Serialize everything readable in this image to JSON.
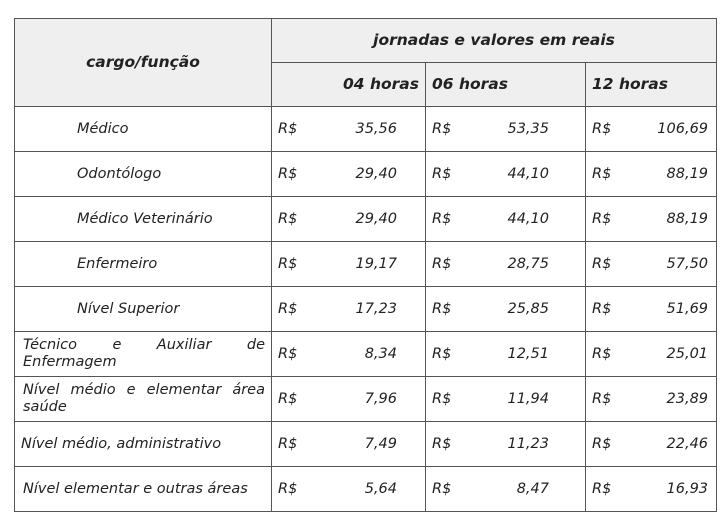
{
  "table": {
    "header_role": "cargo/função",
    "header_group": "jornadas e valores em reais",
    "columns": [
      "04 horas",
      "06 horas",
      "12 horas"
    ],
    "currency": "R$",
    "rows": [
      {
        "role": "Médico",
        "values": [
          "35,56",
          "53,35",
          "106,69"
        ]
      },
      {
        "role": "Odontólogo",
        "values": [
          "29,40",
          "44,10",
          "88,19"
        ]
      },
      {
        "role": "Médico Veterinário",
        "values": [
          "29,40",
          "44,10",
          "88,19"
        ]
      },
      {
        "role": "Enfermeiro",
        "values": [
          "19,17",
          "28,75",
          "57,50"
        ]
      },
      {
        "role": "Nível Superior",
        "values": [
          "17,23",
          "25,85",
          "51,69"
        ]
      },
      {
        "role": "Técnico e Auxiliar de Enfermagem",
        "values": [
          "8,34",
          "12,51",
          "25,01"
        ]
      },
      {
        "role": "Nível médio e elementar área saúde",
        "values": [
          "7,96",
          "11,94",
          "23,89"
        ]
      },
      {
        "role": "Nível médio, administrativo",
        "values": [
          "7,49",
          "11,23",
          "22,46"
        ]
      },
      {
        "role": "Nível elementar e outras áreas",
        "values": [
          "5,64",
          "8,47",
          "16,93"
        ]
      }
    ]
  }
}
